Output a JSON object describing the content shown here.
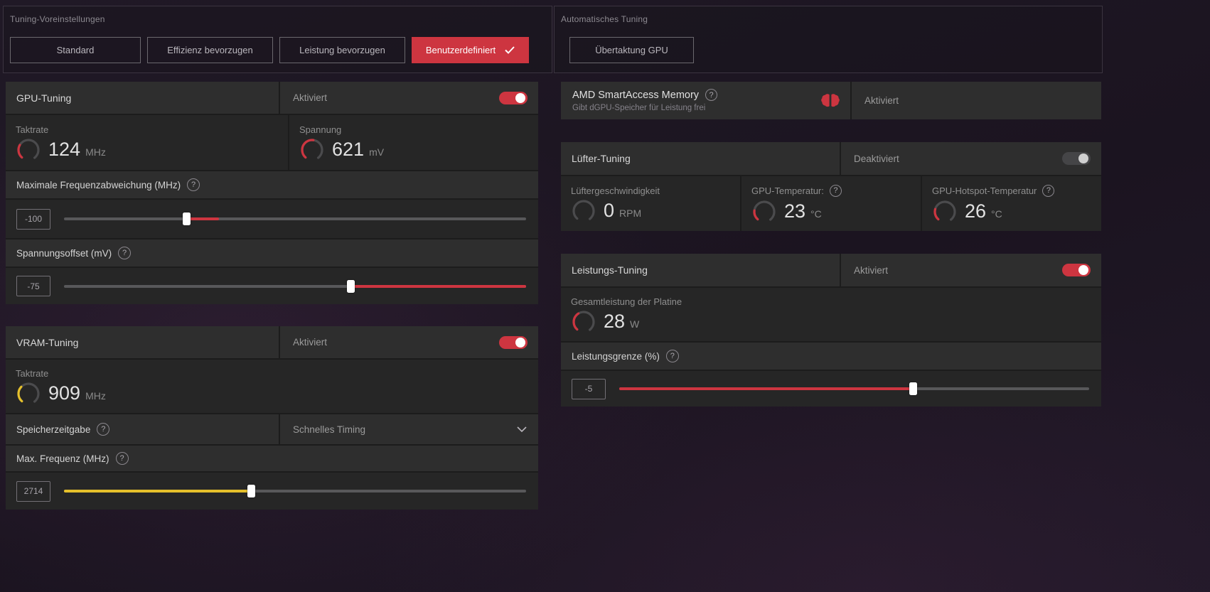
{
  "icons": {
    "help": "?"
  },
  "colors": {
    "red": "#cd3540",
    "yellow": "#e5c02b"
  },
  "presets": {
    "section_title": "Tuning-Voreinstellungen",
    "buttons": [
      {
        "label": "Standard",
        "selected": false
      },
      {
        "label": "Effizienz bevorzugen",
        "selected": false
      },
      {
        "label": "Leistung bevorzugen",
        "selected": false
      },
      {
        "label": "Benutzerdefiniert",
        "selected": true
      }
    ]
  },
  "auto_tuning": {
    "section_title": "Automatisches Tuning",
    "button_label": "Übertaktung GPU"
  },
  "gpu_tuning": {
    "title": "GPU-Tuning",
    "status": "Aktiviert",
    "clock": {
      "label": "Taktrate",
      "value": "124",
      "unit": "MHz",
      "gauge": {
        "fraction": 0.28,
        "color": "#cd3540"
      }
    },
    "voltage": {
      "label": "Spannung",
      "value": "621",
      "unit": "mV",
      "gauge": {
        "fraction": 0.52,
        "color": "#cd3540"
      }
    },
    "freq_offset": {
      "label": "Maximale Frequenzabweichung (MHz)",
      "value": "-100",
      "slider": {
        "fill_start": 0.265,
        "fill_end": 0.335,
        "handle": 0.265,
        "color": "#cd3540"
      }
    },
    "voltage_offset": {
      "label": "Spannungsoffset (mV)",
      "value": "-75",
      "slider": {
        "fill_start": 0.62,
        "fill_end": 1,
        "handle": 0.62,
        "color": "#cd3540"
      }
    }
  },
  "vram_tuning": {
    "title": "VRAM-Tuning",
    "status": "Aktiviert",
    "clock": {
      "label": "Taktrate",
      "value": "909",
      "unit": "MHz",
      "gauge": {
        "fraction": 0.33,
        "color": "#e5c02b"
      }
    },
    "timing": {
      "label": "Speicherzeitgabe",
      "value": "Schnelles Timing"
    },
    "max_freq": {
      "label": "Max. Frequenz (MHz)",
      "value": "2714",
      "slider": {
        "fill_start": 0,
        "fill_end": 0.405,
        "handle": 0.405,
        "color": "#e5c02b"
      }
    }
  },
  "smart_access": {
    "title": "AMD SmartAccess Memory",
    "subtitle": "Gibt dGPU-Speicher für Leistung frei",
    "status": "Aktiviert"
  },
  "fan_tuning": {
    "title": "Lüfter-Tuning",
    "status": "Deaktiviert",
    "fan_speed": {
      "label": "Lüftergeschwindigkeit",
      "value": "0",
      "unit": "RPM",
      "gauge": {
        "fraction": 0,
        "color": "#cd3540"
      }
    },
    "gpu_temp": {
      "label": "GPU-Temperatur:",
      "value": "23",
      "unit": "°C",
      "gauge": {
        "fraction": 0.2,
        "color": "#cd3540"
      }
    },
    "hotspot_temp": {
      "label": "GPU-Hotspot-Temperatur",
      "value": "26",
      "unit": "°C",
      "gauge": {
        "fraction": 0.23,
        "color": "#cd3540"
      }
    }
  },
  "power_tuning": {
    "title": "Leistungs-Tuning",
    "status": "Aktiviert",
    "board_power": {
      "label": "Gesamtleistung der Platine",
      "value": "28",
      "unit": "W",
      "gauge": {
        "fraction": 0.38,
        "color": "#cd3540"
      }
    },
    "power_limit": {
      "label": "Leistungsgrenze (%)",
      "value": "-5",
      "slider": {
        "fill_start": 0,
        "fill_end": 0.625,
        "handle": 0.625,
        "color": "#cd3540"
      }
    }
  }
}
